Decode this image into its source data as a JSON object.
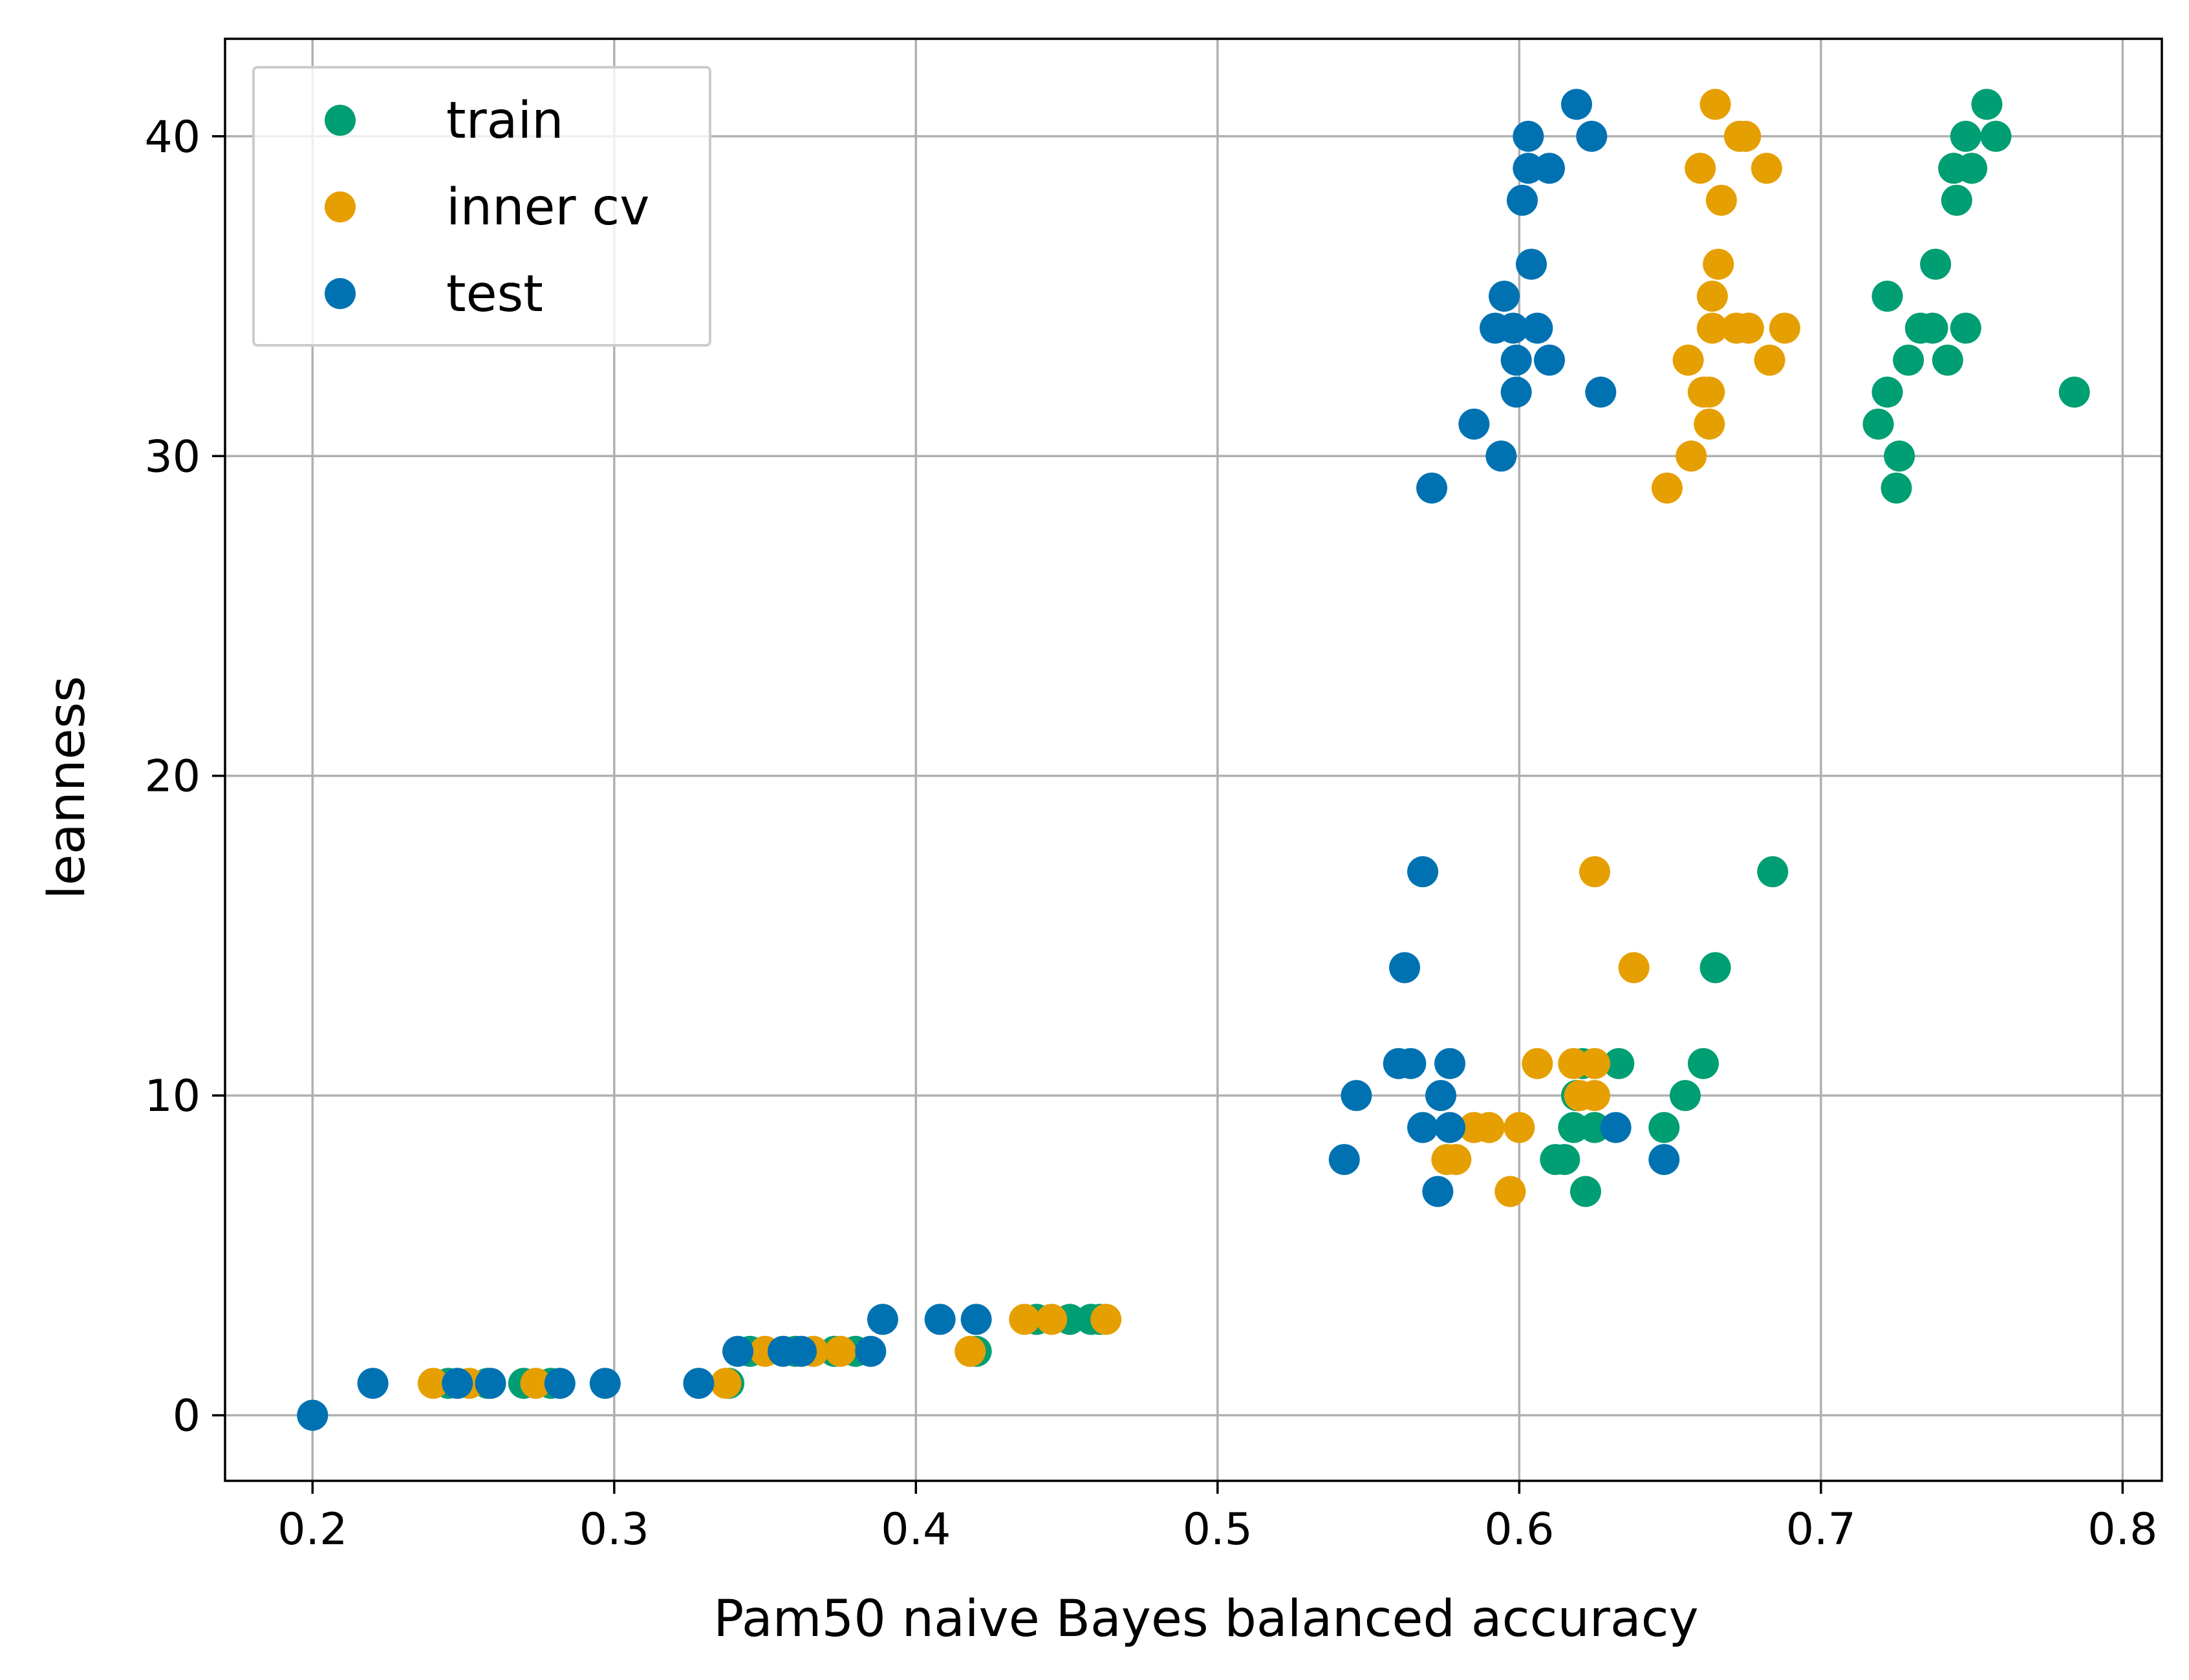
{
  "chart_data": {
    "type": "scatter",
    "title": "",
    "xlabel": "Pam50 naive Bayes balanced accuracy",
    "ylabel": "leanness",
    "xlim": [
      0.171,
      0.813
    ],
    "ylim": [
      -2.05,
      43.05
    ],
    "xticks": [
      0.2,
      0.3,
      0.4,
      0.5,
      0.6,
      0.7,
      0.8
    ],
    "xtick_labels": [
      "0.2",
      "0.3",
      "0.4",
      "0.5",
      "0.6",
      "0.7",
      "0.8"
    ],
    "yticks": [
      0,
      10,
      20,
      30,
      40
    ],
    "ytick_labels": [
      "0",
      "10",
      "20",
      "30",
      "40"
    ],
    "grid": true,
    "legend": {
      "position": "top-left",
      "entries": [
        "train",
        "inner cv",
        "test"
      ]
    },
    "series": [
      {
        "name": "train",
        "color": "#009e73",
        "points": [
          [
            0.2,
            0
          ],
          [
            0.245,
            1
          ],
          [
            0.258,
            1
          ],
          [
            0.27,
            1
          ],
          [
            0.279,
            1
          ],
          [
            0.338,
            1
          ],
          [
            0.345,
            2
          ],
          [
            0.36,
            2
          ],
          [
            0.373,
            2
          ],
          [
            0.38,
            2
          ],
          [
            0.42,
            2
          ],
          [
            0.44,
            3
          ],
          [
            0.451,
            3
          ],
          [
            0.458,
            3
          ],
          [
            0.461,
            3
          ],
          [
            0.612,
            8
          ],
          [
            0.615,
            8
          ],
          [
            0.622,
            7
          ],
          [
            0.618,
            9
          ],
          [
            0.625,
            9
          ],
          [
            0.648,
            9
          ],
          [
            0.619,
            10
          ],
          [
            0.655,
            10
          ],
          [
            0.621,
            11
          ],
          [
            0.633,
            11
          ],
          [
            0.661,
            11
          ],
          [
            0.665,
            14
          ],
          [
            0.684,
            17
          ],
          [
            0.725,
            29
          ],
          [
            0.719,
            31
          ],
          [
            0.726,
            30
          ],
          [
            0.722,
            32
          ],
          [
            0.729,
            33
          ],
          [
            0.742,
            33
          ],
          [
            0.733,
            34
          ],
          [
            0.737,
            34
          ],
          [
            0.748,
            34
          ],
          [
            0.722,
            35
          ],
          [
            0.738,
            36
          ],
          [
            0.745,
            38
          ],
          [
            0.744,
            39
          ],
          [
            0.75,
            39
          ],
          [
            0.748,
            40
          ],
          [
            0.758,
            40
          ],
          [
            0.755,
            41
          ],
          [
            0.784,
            32
          ]
        ]
      },
      {
        "name": "inner cv",
        "color": "#e69f00",
        "points": [
          [
            0.24,
            1
          ],
          [
            0.252,
            1
          ],
          [
            0.274,
            1
          ],
          [
            0.337,
            1
          ],
          [
            0.35,
            2
          ],
          [
            0.366,
            2
          ],
          [
            0.375,
            2
          ],
          [
            0.418,
            2
          ],
          [
            0.436,
            3
          ],
          [
            0.445,
            3
          ],
          [
            0.463,
            3
          ],
          [
            0.576,
            8
          ],
          [
            0.579,
            8
          ],
          [
            0.597,
            7
          ],
          [
            0.585,
            9
          ],
          [
            0.59,
            9
          ],
          [
            0.6,
            9
          ],
          [
            0.62,
            10
          ],
          [
            0.625,
            10
          ],
          [
            0.606,
            11
          ],
          [
            0.618,
            11
          ],
          [
            0.625,
            11
          ],
          [
            0.638,
            14
          ],
          [
            0.625,
            17
          ],
          [
            0.649,
            29
          ],
          [
            0.657,
            30
          ],
          [
            0.663,
            31
          ],
          [
            0.661,
            32
          ],
          [
            0.663,
            32
          ],
          [
            0.656,
            33
          ],
          [
            0.683,
            33
          ],
          [
            0.664,
            34
          ],
          [
            0.672,
            34
          ],
          [
            0.676,
            34
          ],
          [
            0.688,
            34
          ],
          [
            0.664,
            35
          ],
          [
            0.666,
            36
          ],
          [
            0.667,
            38
          ],
          [
            0.66,
            39
          ],
          [
            0.682,
            39
          ],
          [
            0.673,
            40
          ],
          [
            0.675,
            40
          ],
          [
            0.665,
            41
          ]
        ]
      },
      {
        "name": "test",
        "color": "#0072b2",
        "points": [
          [
            0.2,
            0
          ],
          [
            0.22,
            1
          ],
          [
            0.248,
            1
          ],
          [
            0.259,
            1
          ],
          [
            0.282,
            1
          ],
          [
            0.297,
            1
          ],
          [
            0.328,
            1
          ],
          [
            0.341,
            2
          ],
          [
            0.356,
            2
          ],
          [
            0.362,
            2
          ],
          [
            0.385,
            2
          ],
          [
            0.389,
            3
          ],
          [
            0.408,
            3
          ],
          [
            0.42,
            3
          ],
          [
            0.542,
            8
          ],
          [
            0.648,
            8
          ],
          [
            0.573,
            7
          ],
          [
            0.568,
            9
          ],
          [
            0.577,
            9
          ],
          [
            0.632,
            9
          ],
          [
            0.546,
            10
          ],
          [
            0.574,
            10
          ],
          [
            0.56,
            11
          ],
          [
            0.564,
            11
          ],
          [
            0.577,
            11
          ],
          [
            0.562,
            14
          ],
          [
            0.568,
            17
          ],
          [
            0.571,
            29
          ],
          [
            0.585,
            31
          ],
          [
            0.594,
            30
          ],
          [
            0.599,
            32
          ],
          [
            0.627,
            32
          ],
          [
            0.599,
            33
          ],
          [
            0.61,
            33
          ],
          [
            0.592,
            34
          ],
          [
            0.598,
            34
          ],
          [
            0.606,
            34
          ],
          [
            0.595,
            35
          ],
          [
            0.604,
            36
          ],
          [
            0.601,
            38
          ],
          [
            0.603,
            39
          ],
          [
            0.61,
            39
          ],
          [
            0.603,
            40
          ],
          [
            0.624,
            40
          ],
          [
            0.619,
            41
          ]
        ]
      }
    ]
  }
}
